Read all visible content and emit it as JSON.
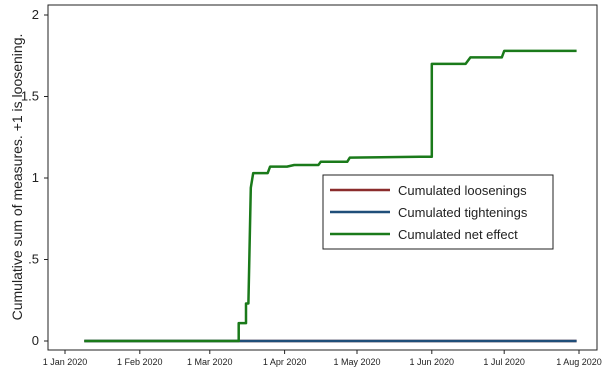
{
  "chart_data": {
    "type": "line",
    "title": "",
    "xlabel": "",
    "ylabel": "Cumulative sum of measures. +1 is loosening.",
    "x_ticks": [
      "1 Jan 2020",
      "1 Feb 2020",
      "1 Mar 2020",
      "1 Apr 2020",
      "1 May 2020",
      "1 Jun 2020",
      "1 Jul 2020",
      "1 Aug 2020"
    ],
    "y_ticks": [
      "0",
      ".5",
      "1",
      "1.5",
      "2"
    ],
    "xlim": [
      "2020-01-01",
      "2020-08-01"
    ],
    "ylim": [
      0,
      2
    ],
    "grid": false,
    "legend_position": "center-right",
    "series": [
      {
        "name": "Cumulated loosenings",
        "color": "#8b2c2c",
        "points": [
          [
            "2020-01-09",
            0
          ],
          [
            "2020-07-31",
            0
          ]
        ]
      },
      {
        "name": "Cumulated tightenings",
        "color": "#1f4e79",
        "points": [
          [
            "2020-01-09",
            0
          ],
          [
            "2020-07-31",
            0
          ]
        ]
      },
      {
        "name": "Cumulated net effect",
        "color": "#1a7a1a",
        "points": [
          [
            "2020-01-09",
            0
          ],
          [
            "2020-03-13",
            0
          ],
          [
            "2020-03-13",
            0.11
          ],
          [
            "2020-03-16",
            0.11
          ],
          [
            "2020-03-16",
            0.23
          ],
          [
            "2020-03-17",
            0.23
          ],
          [
            "2020-03-18",
            0.94
          ],
          [
            "2020-03-19",
            1.03
          ],
          [
            "2020-03-25",
            1.03
          ],
          [
            "2020-03-26",
            1.07
          ],
          [
            "2020-04-02",
            1.07
          ],
          [
            "2020-04-05",
            1.08
          ],
          [
            "2020-04-15",
            1.08
          ],
          [
            "2020-04-16",
            1.1
          ],
          [
            "2020-04-27",
            1.1
          ],
          [
            "2020-04-28",
            1.125
          ],
          [
            "2020-05-27",
            1.13
          ],
          [
            "2020-06-01",
            1.13
          ],
          [
            "2020-06-01",
            1.7
          ],
          [
            "2020-06-15",
            1.7
          ],
          [
            "2020-06-17",
            1.74
          ],
          [
            "2020-06-30",
            1.74
          ],
          [
            "2020-07-01",
            1.78
          ],
          [
            "2020-07-31",
            1.78
          ]
        ]
      }
    ]
  }
}
